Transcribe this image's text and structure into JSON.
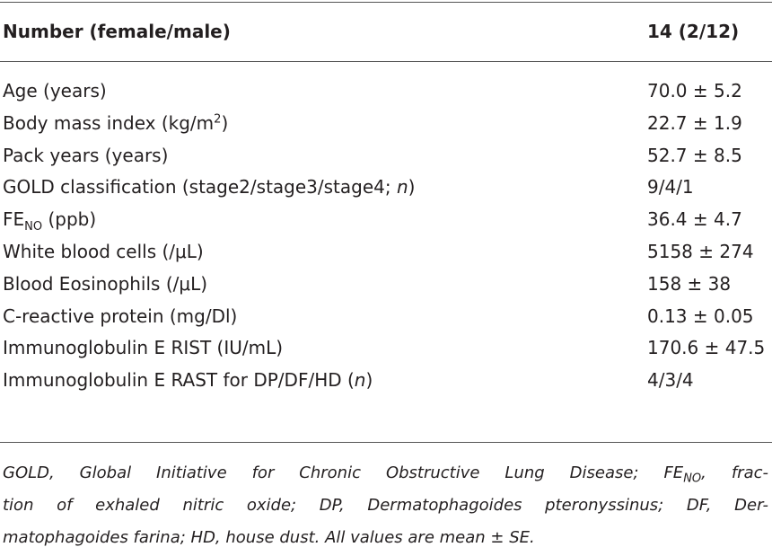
{
  "table": {
    "header": [
      [
        {
          "t": "Number (female/male)"
        }
      ],
      [
        {
          "t": "14 (2/12)"
        }
      ]
    ],
    "rows": [
      [
        [
          {
            "t": "Age (years)"
          }
        ],
        [
          {
            "t": "70.0 ± 5.2"
          }
        ]
      ],
      [
        [
          {
            "t": "Body mass index (kg/m"
          },
          {
            "t": "2",
            "style": "sup"
          },
          {
            "t": ")"
          }
        ],
        [
          {
            "t": "22.7 ± 1.9"
          }
        ]
      ],
      [
        [
          {
            "t": "Pack years (years)"
          }
        ],
        [
          {
            "t": "52.7 ± 8.5"
          }
        ]
      ],
      [
        [
          {
            "t": "GOLD classification (stage2/stage3/stage4; "
          },
          {
            "t": "n",
            "style": "i"
          },
          {
            "t": ")"
          }
        ],
        [
          {
            "t": "9/4/1"
          }
        ]
      ],
      [
        [
          {
            "t": "FE"
          },
          {
            "t": "NO",
            "style": "sub"
          },
          {
            "t": " (ppb)"
          }
        ],
        [
          {
            "t": "36.4 ± 4.7"
          }
        ]
      ],
      [
        [
          {
            "t": "White blood cells (/μL)"
          }
        ],
        [
          {
            "t": "5158 ± 274"
          }
        ]
      ],
      [
        [
          {
            "t": "Blood Eosinophils (/μL)"
          }
        ],
        [
          {
            "t": "158 ± 38"
          }
        ]
      ],
      [
        [
          {
            "t": "C-reactive protein (mg/Dl)"
          }
        ],
        [
          {
            "t": "0.13 ± 0.05"
          }
        ]
      ],
      [
        [
          {
            "t": "Immunoglobulin E RIST (IU/mL)"
          }
        ],
        [
          {
            "t": "170.6 ± 47.5"
          }
        ]
      ],
      [
        [
          {
            "t": "Immunoglobulin E RAST for DP/DF/HD ("
          },
          {
            "t": "n",
            "style": "i"
          },
          {
            "t": ")"
          }
        ],
        [
          {
            "t": "4/3/4"
          }
        ]
      ]
    ],
    "footnote": [
      [
        {
          "t": "GOLD, Global Initiative for Chronic Obstructive Lung Disease; FE"
        },
        {
          "t": "NO",
          "style": "sub"
        },
        {
          "t": ", frac-"
        }
      ],
      [
        {
          "t": "tion of exhaled nitric oxide; DP, Dermatophagoides pteronyssinus; DF, Der-"
        }
      ],
      [
        {
          "t": "matophagoides farina; HD, house dust. All values are mean ± SE."
        }
      ]
    ]
  }
}
